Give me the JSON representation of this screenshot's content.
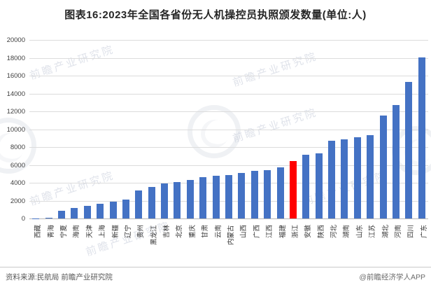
{
  "title": "图表16:2023年全国各省份无人机操控员执照颁发数量(单位:人)",
  "chart_data": {
    "type": "bar",
    "title": "图表16:2023年全国各省份无人机操控员执照颁发数量(单位:人)",
    "unit": "人",
    "categories": [
      "西藏",
      "青海",
      "宁夏",
      "海南",
      "天津",
      "上海",
      "新疆",
      "辽宁",
      "贵州",
      "黑龙江",
      "吉林",
      "北京",
      "重庆",
      "甘肃",
      "云南",
      "内蒙古",
      "山西",
      "广西",
      "江西",
      "福建",
      "浙江",
      "安徽",
      "陕西",
      "河北",
      "湖南",
      "山东",
      "江苏",
      "湖北",
      "河南",
      "四川",
      "广东"
    ],
    "values": [
      30,
      90,
      900,
      1150,
      1400,
      1650,
      1900,
      2150,
      3100,
      3500,
      3950,
      4100,
      4350,
      4650,
      4750,
      4900,
      5100,
      5350,
      5450,
      5700,
      6400,
      7100,
      7300,
      8700,
      8900,
      9100,
      9350,
      11500,
      12700,
      15300,
      18050
    ],
    "highlight_category": "浙江",
    "highlight_index": 20,
    "bar_color": "#4472C4",
    "highlight_color": "#FF0000",
    "ylim": [
      0,
      20000
    ],
    "yticks": [
      0,
      2000,
      4000,
      6000,
      8000,
      10000,
      12000,
      14000,
      16000,
      18000,
      20000
    ],
    "grid": true,
    "legend": "none",
    "xlabel": "",
    "ylabel": ""
  },
  "watermark": {
    "text": "前瞻产业研究院"
  },
  "footer": {
    "source": "资料来源:民航局 前瞻产业研究院",
    "brand": "@前瞻经济学人APP"
  }
}
